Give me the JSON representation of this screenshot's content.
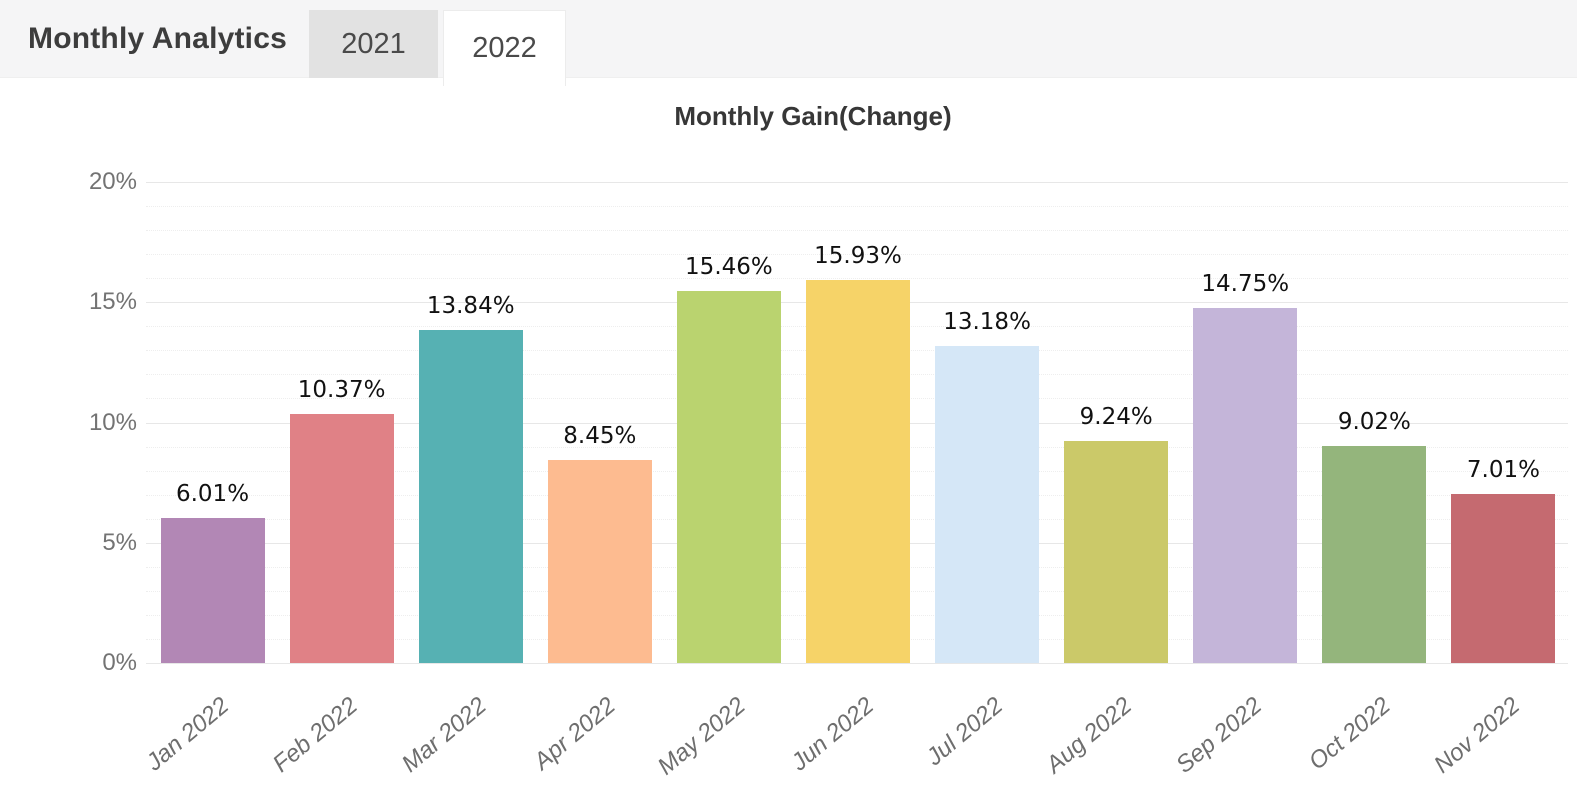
{
  "header": {
    "title": "Monthly Analytics",
    "tabs": [
      {
        "label": "2021",
        "active": false
      },
      {
        "label": "2022",
        "active": true
      }
    ]
  },
  "chart_data": {
    "type": "bar",
    "title": "Monthly Gain(Change)",
    "categories": [
      "Jan 2022",
      "Feb 2022",
      "Mar 2022",
      "Apr 2022",
      "May 2022",
      "Jun 2022",
      "Jul 2022",
      "Aug 2022",
      "Sep 2022",
      "Oct 2022",
      "Nov 2022"
    ],
    "values": [
      6.01,
      10.37,
      13.84,
      8.45,
      15.46,
      15.93,
      13.18,
      9.24,
      14.75,
      9.02,
      7.01
    ],
    "data_labels": [
      "6.01%",
      "10.37%",
      "13.84%",
      "8.45%",
      "15.46%",
      "15.93%",
      "13.18%",
      "9.24%",
      "14.75%",
      "9.02%",
      "7.01%"
    ],
    "bar_colors": [
      "#b287b5",
      "#e08186",
      "#56b1b3",
      "#fdbb90",
      "#bad36f",
      "#f6d368",
      "#d5e7f7",
      "#cbc969",
      "#c4b5d9",
      "#94b57c",
      "#c56a70"
    ],
    "xlabel": "",
    "ylabel": "",
    "y_tick_labels": [
      "0%",
      "5%",
      "10%",
      "15%",
      "20%"
    ],
    "ylim": [
      0,
      20
    ],
    "y_major_step": 5,
    "y_minor_step": 1,
    "grid": true,
    "legend_position": "none"
  },
  "colors": {
    "header_bg": "#f5f5f6",
    "tab_inactive_bg": "#e2e2e2",
    "tab_active_bg": "#ffffff",
    "grid_major": "#e7e7e7",
    "grid_minor": "#eeeeee",
    "axis_text": "#737373",
    "value_text": "#111111",
    "title_text": "#373737"
  }
}
